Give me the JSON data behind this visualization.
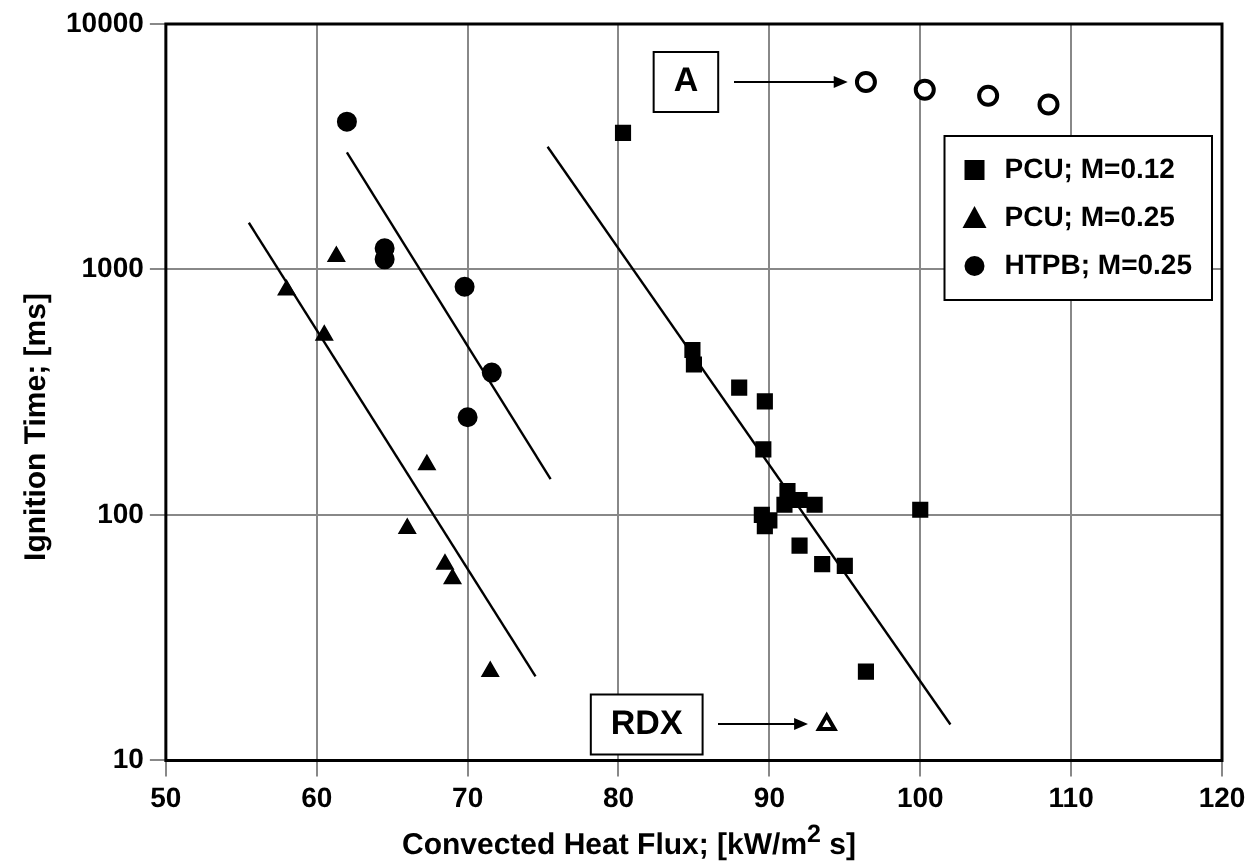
{
  "chart_data": {
    "type": "scatter",
    "xlabel": "Convected Heat Flux; [kW/m$^{2}$ s]",
    "ylabel": "Ignition Time; [ms]",
    "xlim": [
      50,
      120
    ],
    "xticks": [
      50,
      60,
      70,
      80,
      90,
      100,
      110,
      120
    ],
    "ylim": [
      10,
      10000
    ],
    "yticks": [
      10,
      100,
      1000,
      10000
    ],
    "log": "y",
    "grid": true,
    "legend": "top right",
    "series": [
      {
        "name": "PCU; M=0.12",
        "color": "#000000",
        "marker": "square",
        "x": [
          80.3,
          84.9,
          85,
          88,
          89.7,
          89.6,
          89.5,
          89.7,
          90,
          91,
          91.2,
          92,
          93,
          92,
          93.5,
          95,
          96.4,
          100
        ],
        "values": [
          3600,
          470,
          410,
          330,
          290,
          185,
          100,
          90,
          95,
          110,
          125,
          115,
          110,
          75,
          63,
          62,
          23,
          105
        ]
      },
      {
        "name": "PCU; M=0.25",
        "color": "#000000",
        "marker": "triangle",
        "x": [
          58,
          60.5,
          61.3,
          66,
          67.3,
          68.5,
          69,
          71.5
        ],
        "values": [
          825,
          540,
          1130,
          88,
          160,
          63,
          55,
          23
        ]
      },
      {
        "name": "HTPB; M=0.25",
        "color": "#000000",
        "marker": "circle",
        "x": [
          62,
          64.5,
          64.5,
          69.8,
          70,
          71.6
        ],
        "values": [
          4000,
          1100,
          1220,
          850,
          250,
          380
        ]
      },
      {
        "color": "#000000",
        "marker": "circle",
        "x": [
          96.4,
          100.3,
          104.5,
          108.5
        ],
        "values": [
          5800,
          5400,
          5100,
          4700
        ]
      },
      {
        "color": "#000000",
        "marker": "triangle",
        "x": [
          93.8
        ],
        "values": [
          14
        ]
      },
      {
        "type": "line",
        "color": "#000000",
        "marker": "none",
        "x": [
          75.3,
          102
        ],
        "values": [
          3160,
          14
        ]
      },
      {
        "type": "line",
        "color": "#000000",
        "marker": "none",
        "x": [
          55.5,
          74.5
        ],
        "values": [
          1550,
          22
        ]
      },
      {
        "type": "line",
        "color": "#000000",
        "marker": "none",
        "x": [
          62,
          75.5
        ],
        "values": [
          3000,
          140
        ]
      }
    ],
    "annotations": [
      "A",
      "RDX"
    ]
  }
}
